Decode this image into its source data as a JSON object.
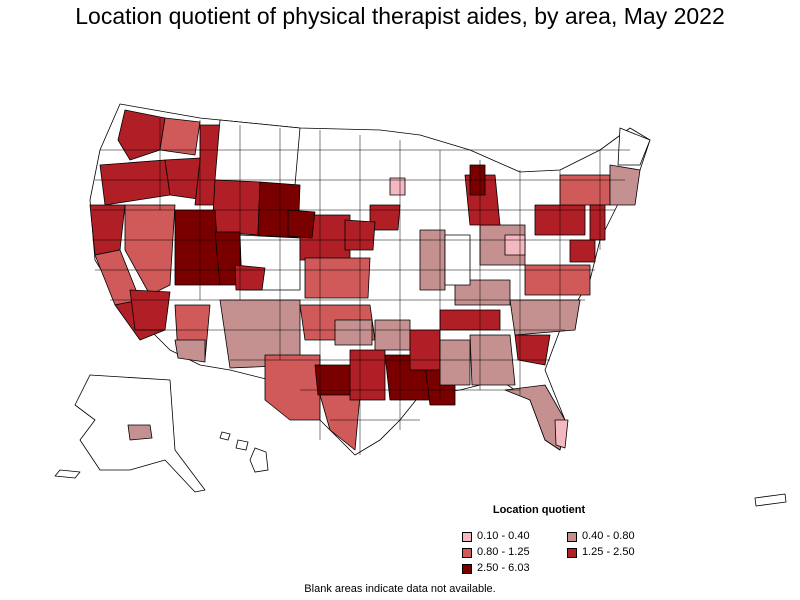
{
  "title": "Location quotient of physical therapist aides, by area, May 2022",
  "legend": {
    "title": "Location quotient",
    "items": [
      {
        "label": "0.10 - 0.40",
        "color": "#f4b8c0"
      },
      {
        "label": "0.40 - 0.80",
        "color": "#c49090"
      },
      {
        "label": "0.80 - 1.25",
        "color": "#d05a5a"
      },
      {
        "label": "1.25 - 2.50",
        "color": "#b01e26"
      },
      {
        "label": "2.50 - 6.03",
        "color": "#7a0000"
      }
    ]
  },
  "note": "Blank areas indicate data not available.",
  "colors": {
    "blank": "#ffffff",
    "border": "#000000"
  }
}
